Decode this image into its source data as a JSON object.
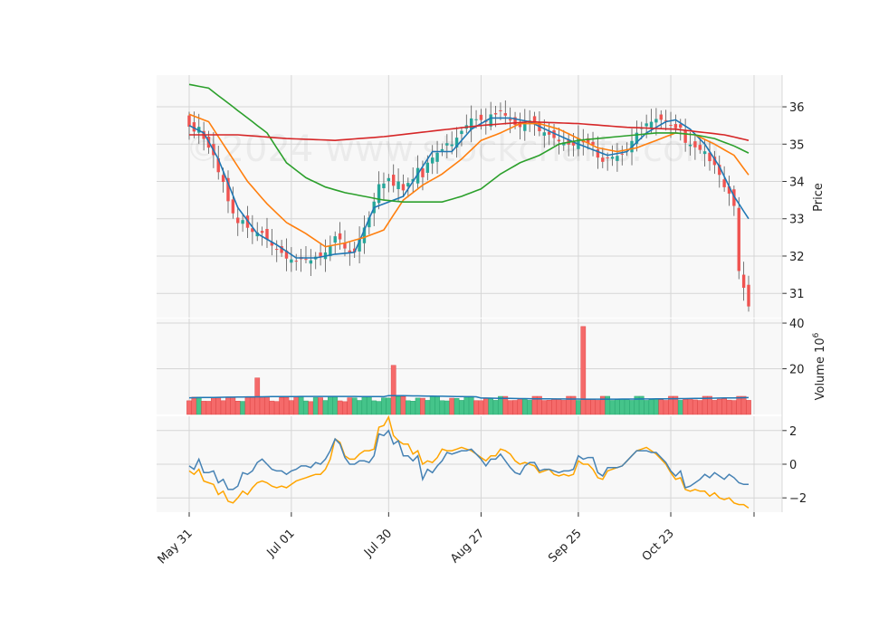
{
  "watermark": "©2024 www.stockcharts.com",
  "chart_data": {
    "type": "candlestick",
    "x_ticks": [
      "May 31",
      "Jul 01",
      "Jul 30",
      "Aug 27",
      "Sep 25",
      "Oct 23"
    ],
    "price_panel": {
      "ylabel": "Price",
      "ylim": [
        30.35,
        36.85
      ],
      "yticks": [
        31,
        32,
        33,
        34,
        35,
        36
      ],
      "ma_colors": [
        "#1f77b4",
        "#ff7f0e",
        "#2ca02c",
        "#d62728"
      ],
      "bull_color": "#26a69a",
      "bear_color": "#ef5350",
      "ma_anchor_points": {
        "blue": [
          [
            0,
            35.5
          ],
          [
            3,
            35.3
          ],
          [
            6,
            34.6
          ],
          [
            10,
            33.3
          ],
          [
            14,
            32.6
          ],
          [
            18,
            32.3
          ],
          [
            22,
            31.95
          ],
          [
            26,
            31.95
          ],
          [
            30,
            32.05
          ],
          [
            34,
            32.1
          ],
          [
            38,
            33.3
          ],
          [
            44,
            33.6
          ],
          [
            50,
            34.8
          ],
          [
            54,
            34.8
          ],
          [
            58,
            35.4
          ],
          [
            62,
            35.7
          ],
          [
            66,
            35.7
          ],
          [
            70,
            35.6
          ],
          [
            74,
            35.35
          ],
          [
            80,
            35.0
          ],
          [
            86,
            34.7
          ],
          [
            90,
            34.8
          ],
          [
            94,
            35.3
          ],
          [
            98,
            35.6
          ],
          [
            100,
            35.65
          ],
          [
            103,
            35.4
          ],
          [
            106,
            35.0
          ],
          [
            109,
            34.4
          ],
          [
            112,
            33.6
          ],
          [
            115,
            33.0
          ],
          [
            118,
            32.4
          ],
          [
            120,
            31.9
          ]
        ],
        "orange": [
          [
            0,
            35.8
          ],
          [
            4,
            35.6
          ],
          [
            8,
            34.8
          ],
          [
            12,
            34.0
          ],
          [
            16,
            33.4
          ],
          [
            20,
            32.9
          ],
          [
            24,
            32.6
          ],
          [
            28,
            32.25
          ],
          [
            32,
            32.35
          ],
          [
            36,
            32.5
          ],
          [
            40,
            32.7
          ],
          [
            44,
            33.5
          ],
          [
            48,
            33.9
          ],
          [
            52,
            34.2
          ],
          [
            56,
            34.6
          ],
          [
            60,
            35.1
          ],
          [
            64,
            35.3
          ],
          [
            68,
            35.55
          ],
          [
            72,
            35.55
          ],
          [
            76,
            35.4
          ],
          [
            80,
            35.15
          ],
          [
            84,
            34.9
          ],
          [
            88,
            34.8
          ],
          [
            92,
            34.9
          ],
          [
            96,
            35.1
          ],
          [
            100,
            35.3
          ],
          [
            104,
            35.25
          ],
          [
            108,
            35.0
          ],
          [
            112,
            34.7
          ],
          [
            116,
            34.0
          ],
          [
            120,
            33.15
          ]
        ],
        "green": [
          [
            0,
            36.6
          ],
          [
            4,
            36.5
          ],
          [
            8,
            36.1
          ],
          [
            12,
            35.7
          ],
          [
            16,
            35.3
          ],
          [
            20,
            34.5
          ],
          [
            24,
            34.1
          ],
          [
            28,
            33.85
          ],
          [
            32,
            33.7
          ],
          [
            36,
            33.6
          ],
          [
            40,
            33.5
          ],
          [
            44,
            33.45
          ],
          [
            48,
            33.45
          ],
          [
            52,
            33.45
          ],
          [
            56,
            33.6
          ],
          [
            60,
            33.8
          ],
          [
            64,
            34.2
          ],
          [
            68,
            34.5
          ],
          [
            72,
            34.7
          ],
          [
            76,
            35.0
          ],
          [
            80,
            35.1
          ],
          [
            84,
            35.15
          ],
          [
            88,
            35.2
          ],
          [
            92,
            35.25
          ],
          [
            96,
            35.3
          ],
          [
            100,
            35.3
          ],
          [
            104,
            35.25
          ],
          [
            108,
            35.15
          ],
          [
            112,
            34.95
          ],
          [
            116,
            34.7
          ],
          [
            120,
            34.3
          ]
        ],
        "red": [
          [
            0,
            35.25
          ],
          [
            10,
            35.25
          ],
          [
            20,
            35.15
          ],
          [
            30,
            35.1
          ],
          [
            40,
            35.2
          ],
          [
            50,
            35.35
          ],
          [
            60,
            35.5
          ],
          [
            70,
            35.6
          ],
          [
            80,
            35.55
          ],
          [
            90,
            35.45
          ],
          [
            100,
            35.4
          ],
          [
            110,
            35.25
          ],
          [
            120,
            34.95
          ]
        ]
      }
    },
    "volume_panel": {
      "ylabel": "Volume",
      "unit_exponent": "6",
      "ylim": [
        0,
        42
      ],
      "yticks": [
        20,
        40
      ],
      "avg_color": "#1f77b4"
    },
    "oscillator_panel": {
      "ylim": [
        -2.85,
        2.85
      ],
      "yticks": [
        -2,
        0,
        2
      ],
      "colors": [
        "#4682b4",
        "#ffa500"
      ],
      "line1": [
        -0.1,
        -0.3,
        0.3,
        -0.5,
        -0.5,
        -0.4,
        -1.1,
        -0.9,
        -1.5,
        -1.5,
        -1.3,
        -0.5,
        -0.6,
        -0.4,
        0.1,
        0.3,
        0.0,
        -0.3,
        -0.4,
        -0.4,
        -0.6,
        -0.4,
        -0.3,
        -0.1,
        -0.1,
        -0.2,
        0.1,
        0.0,
        0.3,
        0.8,
        1.5,
        1.2,
        0.4,
        0.0,
        0.0,
        0.2,
        0.2,
        0.1,
        0.5,
        1.8,
        1.7,
        2.0,
        1.2,
        1.4,
        0.5,
        0.5,
        0.2,
        0.5,
        -0.9,
        -0.3,
        -0.5,
        -0.1,
        0.2,
        0.7,
        0.6,
        0.7,
        0.8,
        0.8,
        0.9,
        0.6,
        0.3,
        -0.1,
        0.3,
        0.3,
        0.6,
        0.2,
        -0.2,
        -0.5,
        -0.6,
        -0.1,
        0.1,
        0.1,
        -0.4,
        -0.3,
        -0.3,
        -0.4,
        -0.5,
        -0.4,
        -0.4,
        -0.3,
        0.5,
        0.3,
        0.4,
        0.4,
        -0.5,
        -0.7,
        -0.2,
        -0.2,
        -0.2,
        -0.1,
        0.2,
        0.5,
        0.8,
        0.8,
        0.8,
        0.7,
        0.7,
        0.4,
        0.1,
        -0.4,
        -0.7,
        -0.4,
        -1.4,
        -1.3,
        -1.1,
        -0.9,
        -0.6,
        -0.8,
        -0.5,
        -0.7,
        -0.9,
        -0.6,
        -0.8,
        -1.1,
        -1.2,
        -1.2
      ],
      "line2": [
        -0.4,
        -0.6,
        -0.3,
        -1.0,
        -1.1,
        -1.2,
        -1.8,
        -1.6,
        -2.2,
        -2.3,
        -2.0,
        -1.6,
        -1.8,
        -1.4,
        -1.1,
        -1.0,
        -1.1,
        -1.3,
        -1.4,
        -1.3,
        -1.4,
        -1.2,
        -1.0,
        -0.9,
        -0.8,
        -0.7,
        -0.6,
        -0.6,
        -0.3,
        0.3,
        1.5,
        1.3,
        0.5,
        0.3,
        0.3,
        0.6,
        0.8,
        0.8,
        0.9,
        2.2,
        2.3,
        2.8,
        1.7,
        1.4,
        1.2,
        1.2,
        0.6,
        0.8,
        0.0,
        0.2,
        0.1,
        0.4,
        0.9,
        0.8,
        0.8,
        0.9,
        1.0,
        0.9,
        0.8,
        0.6,
        0.4,
        0.2,
        0.5,
        0.5,
        0.9,
        0.8,
        0.6,
        0.2,
        0.0,
        0.1,
        0.0,
        -0.1,
        -0.5,
        -0.4,
        -0.3,
        -0.6,
        -0.7,
        -0.6,
        -0.7,
        -0.6,
        0.2,
        0.0,
        0.0,
        -0.3,
        -0.8,
        -0.9,
        -0.4,
        -0.3,
        -0.2,
        -0.1,
        0.2,
        0.5,
        0.8,
        0.9,
        1.0,
        0.8,
        0.6,
        0.3,
        0.0,
        -0.5,
        -0.9,
        -0.8,
        -1.5,
        -1.6,
        -1.5,
        -1.6,
        -1.6,
        -1.9,
        -1.7,
        -2.0,
        -2.1,
        -2.0,
        -2.3,
        -2.4,
        -2.4,
        -2.6
      ]
    }
  }
}
